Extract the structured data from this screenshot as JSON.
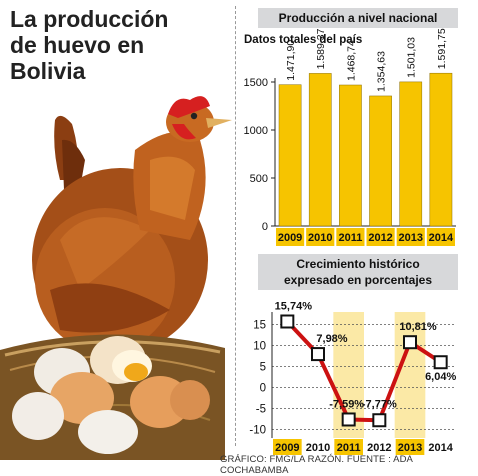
{
  "headline": {
    "line1": "La producción",
    "line2": "de huevo en",
    "line3": "Bolivia"
  },
  "credit": "GRÁFICO: FMG/LA RAZÓN. FUENTE : ADA COCHABAMBA",
  "colors": {
    "bar": "#f6c400",
    "bar_stroke": "#8a6d00",
    "line": "#cc1111",
    "panel_head": "#d7d8da",
    "year_bg": "#f6c400",
    "stripe": "#fbe9a6"
  },
  "chart_data": [
    {
      "type": "bar",
      "header": "Producción a nivel nacional",
      "title": "Datos totales del país",
      "categories": [
        "2009",
        "2010",
        "2011",
        "2012",
        "2013",
        "2014"
      ],
      "values": [
        1471.9,
        1589.37,
        1468.74,
        1354.63,
        1501.03,
        1591.75
      ],
      "value_labels": [
        "1.471,90",
        "1.589,37",
        "1.468,74",
        "1.354,63",
        "1.501,03",
        "1.591,75"
      ],
      "yticks": [
        0,
        500,
        1000,
        1500
      ],
      "ylim": [
        0,
        1750
      ],
      "grid": false
    },
    {
      "type": "line",
      "header_line1": "Crecimiento histórico",
      "header_line2": "expresado en porcentajes",
      "categories": [
        "2009",
        "2010",
        "2011",
        "2012",
        "2013",
        "2014"
      ],
      "values": [
        15.74,
        7.98,
        -7.59,
        -7.77,
        10.81,
        6.04
      ],
      "value_labels": [
        "15,74%",
        "7,98%",
        "-7,59%",
        "-7,77%",
        "10,81%",
        "6,04%"
      ],
      "yticks": [
        -10,
        -5,
        0,
        5,
        10,
        15
      ],
      "ylim": [
        -12,
        18
      ],
      "grid": true
    }
  ]
}
